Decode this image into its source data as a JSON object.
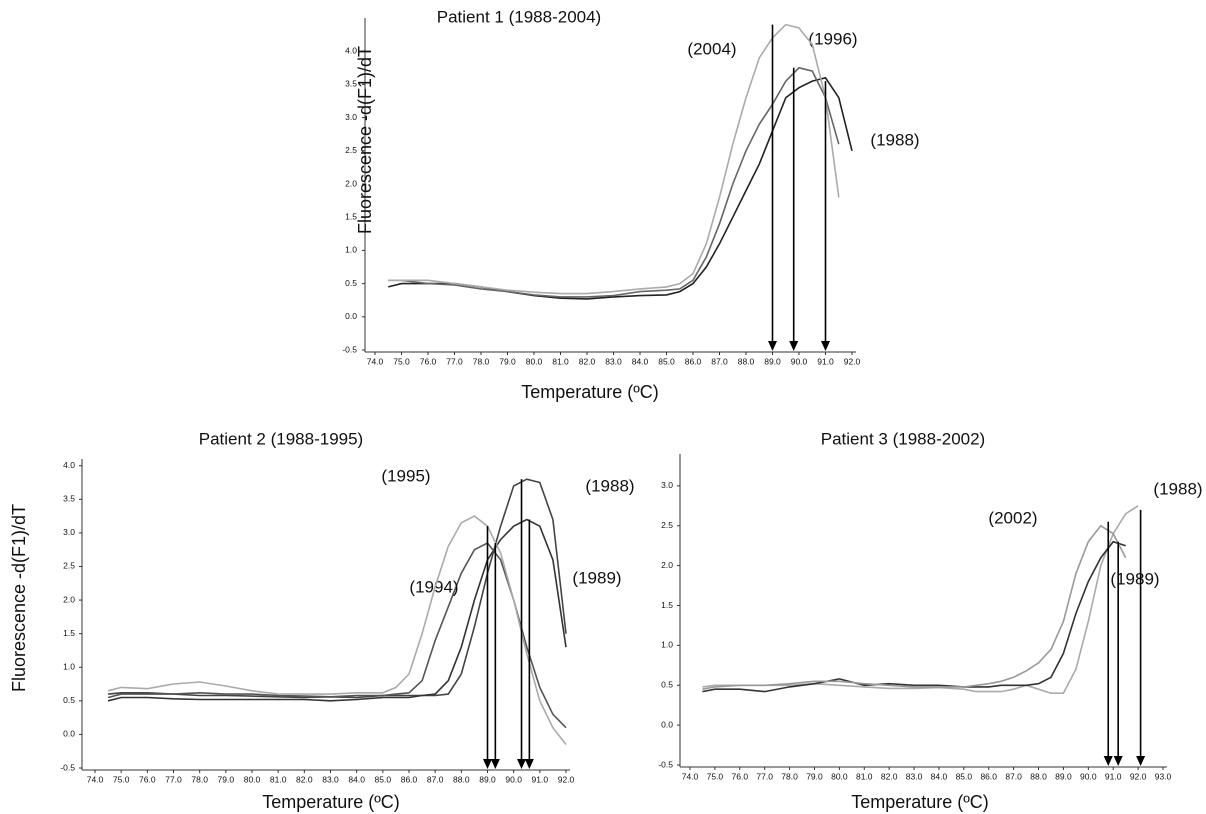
{
  "chart_data": [
    {
      "type": "line",
      "title": "Patient 1 (1988-2004)",
      "xlabel": "Temperature (ºC)",
      "ylabel": "Fluorescence -d(F1)/dT",
      "xlim": [
        74,
        92
      ],
      "ylim": [
        -0.5,
        4.5
      ],
      "xticks": [
        {
          "value": 74,
          "label": "74.0"
        },
        {
          "value": 75,
          "label": "75.0"
        },
        {
          "value": 76,
          "label": "76.0"
        },
        {
          "value": 77,
          "label": "77.0"
        },
        {
          "value": 78,
          "label": "78.0"
        },
        {
          "value": 79,
          "label": "79.0"
        },
        {
          "value": 80,
          "label": "80.0"
        },
        {
          "value": 81,
          "label": "81.0"
        },
        {
          "value": 82,
          "label": "82.0"
        },
        {
          "value": 83,
          "label": "83.0"
        },
        {
          "value": 84,
          "label": "84.0"
        },
        {
          "value": 85,
          "label": "85.0"
        },
        {
          "value": 86,
          "label": "86.0"
        },
        {
          "value": 87,
          "label": "87.0"
        },
        {
          "value": 88,
          "label": "88.0"
        },
        {
          "value": 89,
          "label": "89.0"
        },
        {
          "value": 90,
          "label": "90.0"
        },
        {
          "value": 91,
          "label": "91.0"
        },
        {
          "value": 92,
          "label": "92.0"
        }
      ],
      "yticks": [
        -0.5,
        {
          "value": 0,
          "label": "0.0"
        },
        0.5,
        {
          "value": 1,
          "label": "1.0"
        },
        1.5,
        {
          "value": 2,
          "label": "2.0"
        },
        2.5,
        {
          "value": 3,
          "label": "3.0"
        },
        3.5,
        {
          "value": 4,
          "label": "4.0"
        }
      ],
      "x": [
        74.5,
        75,
        76,
        77,
        78,
        79,
        80,
        81,
        82,
        83,
        84,
        85,
        85.5,
        86,
        86.5,
        87,
        87.5,
        88,
        88.5,
        89,
        89.5,
        90,
        90.5,
        91,
        91.5,
        92
      ],
      "series": [
        {
          "name": "(1988)",
          "color": "#222222",
          "values": [
            0.45,
            0.5,
            0.5,
            0.5,
            0.45,
            0.38,
            0.32,
            0.28,
            0.27,
            0.3,
            0.32,
            0.33,
            0.38,
            0.5,
            0.75,
            1.1,
            1.5,
            1.9,
            2.3,
            2.8,
            3.3,
            3.45,
            3.55,
            3.6,
            3.3,
            2.5
          ]
        },
        {
          "name": "(1996)",
          "color": "#666666",
          "values": [
            0.55,
            0.55,
            0.5,
            0.48,
            0.42,
            0.38,
            0.33,
            0.3,
            0.3,
            0.32,
            0.38,
            0.4,
            0.42,
            0.55,
            0.9,
            1.4,
            2.0,
            2.5,
            2.9,
            3.2,
            3.55,
            3.75,
            3.7,
            3.3,
            2.6,
            null
          ]
        },
        {
          "name": "(2004)",
          "color": "#aaaaaa",
          "values": [
            0.55,
            0.55,
            0.55,
            0.5,
            0.45,
            0.4,
            0.37,
            0.35,
            0.35,
            0.38,
            0.42,
            0.45,
            0.5,
            0.65,
            1.1,
            1.8,
            2.6,
            3.3,
            3.9,
            4.2,
            4.4,
            4.35,
            4.1,
            3.3,
            1.8,
            null
          ]
        }
      ],
      "arrows": [
        {
          "x": 89.0,
          "y": 4.4
        },
        {
          "x": 89.8,
          "y": 3.75
        },
        {
          "x": 91.0,
          "y": 3.55
        }
      ]
    },
    {
      "type": "line",
      "title": "Patient 2 (1988-1995)",
      "xlabel": "Temperature (ºC)",
      "ylabel": "Fluorescence -d(F1)/dT",
      "xlim": [
        74,
        92
      ],
      "ylim": [
        -0.5,
        4.1
      ],
      "xticks": [
        {
          "value": 74,
          "label": "74.0"
        },
        {
          "value": 75,
          "label": "75.0"
        },
        {
          "value": 76,
          "label": "76.0"
        },
        {
          "value": 77,
          "label": "77.0"
        },
        {
          "value": 78,
          "label": "78.0"
        },
        {
          "value": 79,
          "label": "79.0"
        },
        {
          "value": 80,
          "label": "80.0"
        },
        {
          "value": 81,
          "label": "81.0"
        },
        {
          "value": 82,
          "label": "82.0"
        },
        {
          "value": 83,
          "label": "83.0"
        },
        {
          "value": 84,
          "label": "84.0"
        },
        {
          "value": 85,
          "label": "85.0"
        },
        {
          "value": 86,
          "label": "86.0"
        },
        {
          "value": 87,
          "label": "87.0"
        },
        {
          "value": 88,
          "label": "88.0"
        },
        {
          "value": 89,
          "label": "89.0"
        },
        {
          "value": 90,
          "label": "90.0"
        },
        {
          "value": 91,
          "label": "91.0"
        },
        {
          "value": 92,
          "label": "92.0"
        }
      ],
      "yticks": [
        -0.5,
        {
          "value": 0,
          "label": "0.0"
        },
        0.5,
        {
          "value": 1,
          "label": "1.0"
        },
        1.5,
        {
          "value": 2,
          "label": "2.0"
        },
        2.5,
        {
          "value": 3,
          "label": "3.0"
        },
        3.5,
        {
          "value": 4,
          "label": "4.0"
        }
      ],
      "x": [
        74.5,
        75,
        76,
        77,
        78,
        79,
        80,
        81,
        82,
        83,
        84,
        85,
        85.5,
        86,
        86.5,
        87,
        87.5,
        88,
        88.5,
        89,
        89.5,
        90,
        90.5,
        91,
        91.5,
        92
      ],
      "series": [
        {
          "name": "(1988)",
          "color": "#444444",
          "values": [
            0.6,
            0.62,
            0.62,
            0.6,
            0.58,
            0.58,
            0.57,
            0.56,
            0.55,
            0.56,
            0.55,
            0.58,
            0.58,
            0.58,
            0.58,
            0.58,
            0.6,
            0.9,
            1.6,
            2.4,
            3.1,
            3.7,
            3.8,
            3.75,
            3.2,
            1.5
          ]
        },
        {
          "name": "(1989)",
          "color": "#333333",
          "values": [
            0.5,
            0.55,
            0.55,
            0.53,
            0.52,
            0.52,
            0.52,
            0.52,
            0.52,
            0.5,
            0.52,
            0.55,
            0.55,
            0.55,
            0.58,
            0.6,
            0.8,
            1.3,
            2.0,
            2.6,
            2.9,
            3.1,
            3.2,
            3.1,
            2.6,
            1.3
          ]
        },
        {
          "name": "(1994)",
          "color": "#555555",
          "values": [
            0.55,
            0.6,
            0.6,
            0.6,
            0.62,
            0.6,
            0.6,
            0.58,
            0.57,
            0.56,
            0.58,
            0.58,
            0.6,
            0.62,
            0.8,
            1.4,
            1.9,
            2.4,
            2.75,
            2.85,
            2.6,
            2.0,
            1.3,
            0.7,
            0.3,
            0.1
          ]
        },
        {
          "name": "(1995)",
          "color": "#aaaaaa",
          "values": [
            0.65,
            0.7,
            0.68,
            0.75,
            0.78,
            0.72,
            0.65,
            0.6,
            0.6,
            0.6,
            0.62,
            0.62,
            0.7,
            0.9,
            1.5,
            2.2,
            2.8,
            3.15,
            3.25,
            3.1,
            2.7,
            2.0,
            1.2,
            0.5,
            0.1,
            -0.15
          ]
        }
      ],
      "arrows": [
        {
          "x": 89.0,
          "y": 3.1
        },
        {
          "x": 89.3,
          "y": 2.85
        },
        {
          "x": 90.3,
          "y": 3.8
        },
        {
          "x": 90.6,
          "y": 3.2
        }
      ]
    },
    {
      "type": "line",
      "title": "Patient 3 (1988-2002)",
      "xlabel": "Temperature (ºC)",
      "xlim": [
        74,
        93
      ],
      "ylim": [
        -0.5,
        3.4
      ],
      "xticks": [
        {
          "value": 74,
          "label": "74.0"
        },
        {
          "value": 75,
          "label": "75.0"
        },
        {
          "value": 76,
          "label": "76.0"
        },
        {
          "value": 77,
          "label": "77.0"
        },
        {
          "value": 78,
          "label": "78.0"
        },
        {
          "value": 79,
          "label": "79.0"
        },
        {
          "value": 80,
          "label": "80.0"
        },
        {
          "value": 81,
          "label": "81.0"
        },
        {
          "value": 82,
          "label": "82.0"
        },
        {
          "value": 83,
          "label": "83.0"
        },
        {
          "value": 84,
          "label": "84.0"
        },
        {
          "value": 85,
          "label": "85.0"
        },
        {
          "value": 86,
          "label": "86.0"
        },
        {
          "value": 87,
          "label": "87.0"
        },
        {
          "value": 88,
          "label": "88.0"
        },
        {
          "value": 89,
          "label": "89.0"
        },
        {
          "value": 90,
          "label": "90.0"
        },
        {
          "value": 91,
          "label": "91.0"
        },
        {
          "value": 92,
          "label": "92.0"
        },
        {
          "value": 93,
          "label": "93.0"
        }
      ],
      "yticks": [
        -0.5,
        {
          "value": 0,
          "label": "0.0"
        },
        0.5,
        {
          "value": 1,
          "label": "1.0"
        },
        1.5,
        {
          "value": 2,
          "label": "2.0"
        },
        2.5,
        {
          "value": 3,
          "label": "3.0"
        }
      ],
      "x": [
        74.5,
        75,
        76,
        77,
        78,
        79,
        80,
        81,
        82,
        83,
        84,
        85,
        85.5,
        86,
        86.5,
        87,
        87.5,
        88,
        88.5,
        89,
        89.5,
        90,
        90.5,
        91,
        91.5,
        92,
        92.5
      ],
      "series": [
        {
          "name": "(1988)",
          "color": "#aaaaaa",
          "values": [
            0.48,
            0.5,
            0.5,
            0.5,
            0.5,
            0.52,
            0.5,
            0.48,
            0.46,
            0.46,
            0.47,
            0.45,
            0.42,
            0.42,
            0.42,
            0.45,
            0.5,
            0.45,
            0.4,
            0.4,
            0.7,
            1.3,
            2.0,
            2.4,
            2.65,
            2.75,
            null
          ]
        },
        {
          "name": "(1989)",
          "color": "#333333",
          "values": [
            0.42,
            0.45,
            0.45,
            0.42,
            0.48,
            0.52,
            0.58,
            0.5,
            0.52,
            0.5,
            0.5,
            0.48,
            0.48,
            0.48,
            0.5,
            0.5,
            0.5,
            0.52,
            0.6,
            0.9,
            1.4,
            1.8,
            2.1,
            2.3,
            2.25,
            null,
            null
          ]
        },
        {
          "name": "(2002)",
          "color": "#999999",
          "values": [
            0.45,
            0.48,
            0.5,
            0.5,
            0.52,
            0.55,
            0.55,
            0.52,
            0.5,
            0.48,
            0.48,
            0.48,
            0.5,
            0.52,
            0.55,
            0.6,
            0.68,
            0.78,
            0.95,
            1.3,
            1.9,
            2.3,
            2.5,
            2.4,
            2.1,
            null,
            null
          ]
        }
      ],
      "arrows": [
        {
          "x": 90.8,
          "y": 2.55
        },
        {
          "x": 91.2,
          "y": 2.3
        },
        {
          "x": 92.1,
          "y": 2.7
        }
      ]
    }
  ]
}
